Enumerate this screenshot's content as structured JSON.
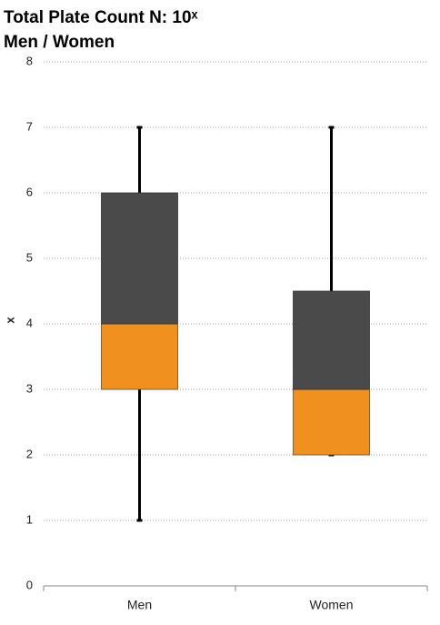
{
  "chart_data": {
    "type": "box",
    "title": "Total Plate Count N: 10ˣ",
    "subtitle": "Men / Women",
    "y_label": "x",
    "categories": [
      "Men",
      "Women"
    ],
    "boxes": [
      {
        "min": 1,
        "q1": 3,
        "median": 4,
        "q3": 6,
        "max": 7
      },
      {
        "min": 2,
        "q1": 2,
        "median": 3,
        "q3": 4.5,
        "max": 7
      }
    ],
    "lower_color": "#f0901f",
    "upper_color": "#4a4a4a",
    "whisker_color": "#000000",
    "ylim": [
      0,
      8
    ],
    "yticks": [
      0,
      1,
      2,
      3,
      4,
      5,
      6,
      7,
      8
    ],
    "grid": true
  }
}
